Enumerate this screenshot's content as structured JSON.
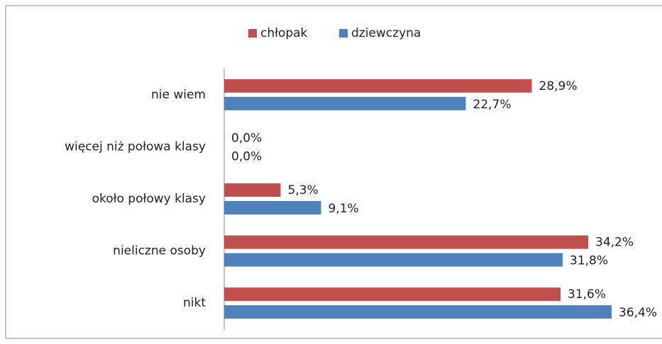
{
  "chart_data": {
    "type": "bar",
    "orientation": "horizontal",
    "categories": [
      "nie wiem",
      "więcej niż połowa klasy",
      "około połowy klasy",
      "nieliczne osoby",
      "nikt"
    ],
    "series": [
      {
        "name": "chłopak",
        "color": "#c0504d",
        "values": [
          28.9,
          0,
          5.3,
          34.2,
          31.6
        ],
        "value_labels": [
          "28,9%",
          "0,0%",
          "5,3%",
          "34,2%",
          "31,6%"
        ]
      },
      {
        "name": "dziewczyna",
        "color": "#4f81bd",
        "values": [
          22.7,
          0,
          9.1,
          31.8,
          36.4
        ],
        "value_labels": [
          "22,7%",
          "0,0%",
          "9,1%",
          "31,8%",
          "36,4%"
        ]
      }
    ],
    "legend": "top"
  }
}
